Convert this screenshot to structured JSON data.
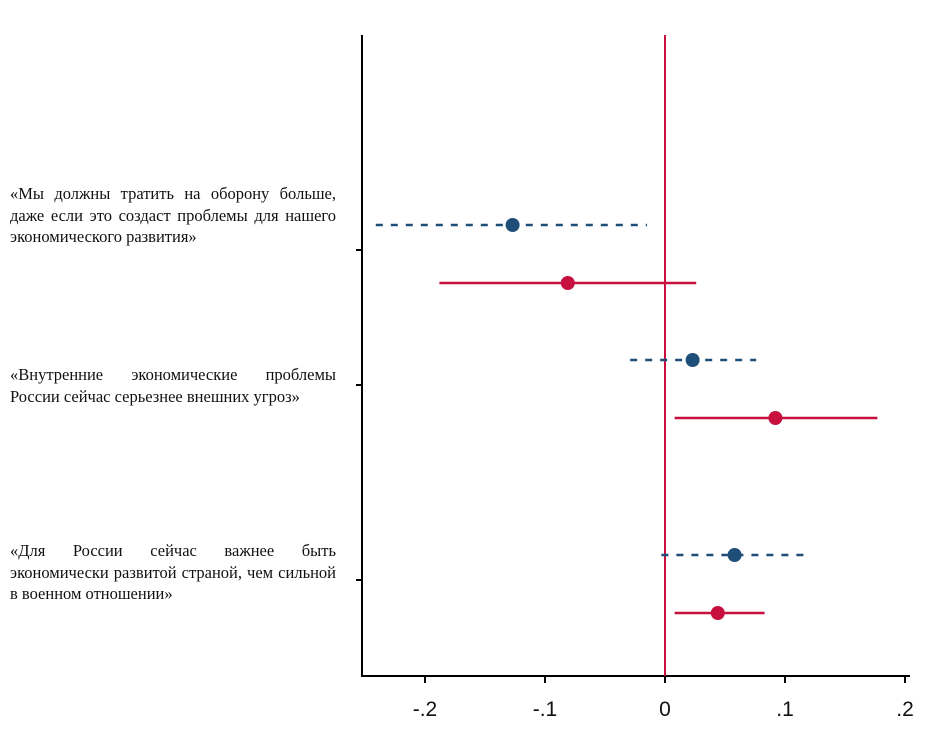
{
  "chart_data": {
    "type": "scatter",
    "subtype": "coefficient-plot",
    "orientation": "horizontal",
    "title": "",
    "xlabel": "",
    "ylabel": "",
    "xlim": [
      -0.25,
      0.21
    ],
    "xticks": [
      -0.2,
      -0.1,
      0,
      0.1,
      0.2
    ],
    "xtick_labels": [
      "-.2",
      "-.1",
      "0",
      ".1",
      ".2"
    ],
    "reference_line": {
      "x": 0,
      "color": "#c8103e"
    },
    "categories": [
      "«Мы должны тратить на оборону больше, даже если это создаст проблемы для нашего экономического развития»",
      "«Внутренние экономические проблемы России сейчас серьезнее внешних угроз»",
      "«Для России сейчас важнее быть экономически развитой страной, чем сильной в военном отношении»"
    ],
    "series": [
      {
        "color": "#1f4e79",
        "line_style": "dashed",
        "estimates": [
          -0.127,
          0.023,
          0.058
        ],
        "ci_low": [
          -0.241,
          -0.029,
          -0.003
        ],
        "ci_high": [
          -0.015,
          0.076,
          0.121
        ]
      },
      {
        "color": "#c8103e",
        "line_style": "solid",
        "estimates": [
          -0.081,
          0.092,
          0.044
        ],
        "ci_low": [
          -0.188,
          0.008,
          0.008
        ],
        "ci_high": [
          0.026,
          0.177,
          0.083
        ]
      }
    ],
    "grid": false,
    "legend": "none"
  }
}
